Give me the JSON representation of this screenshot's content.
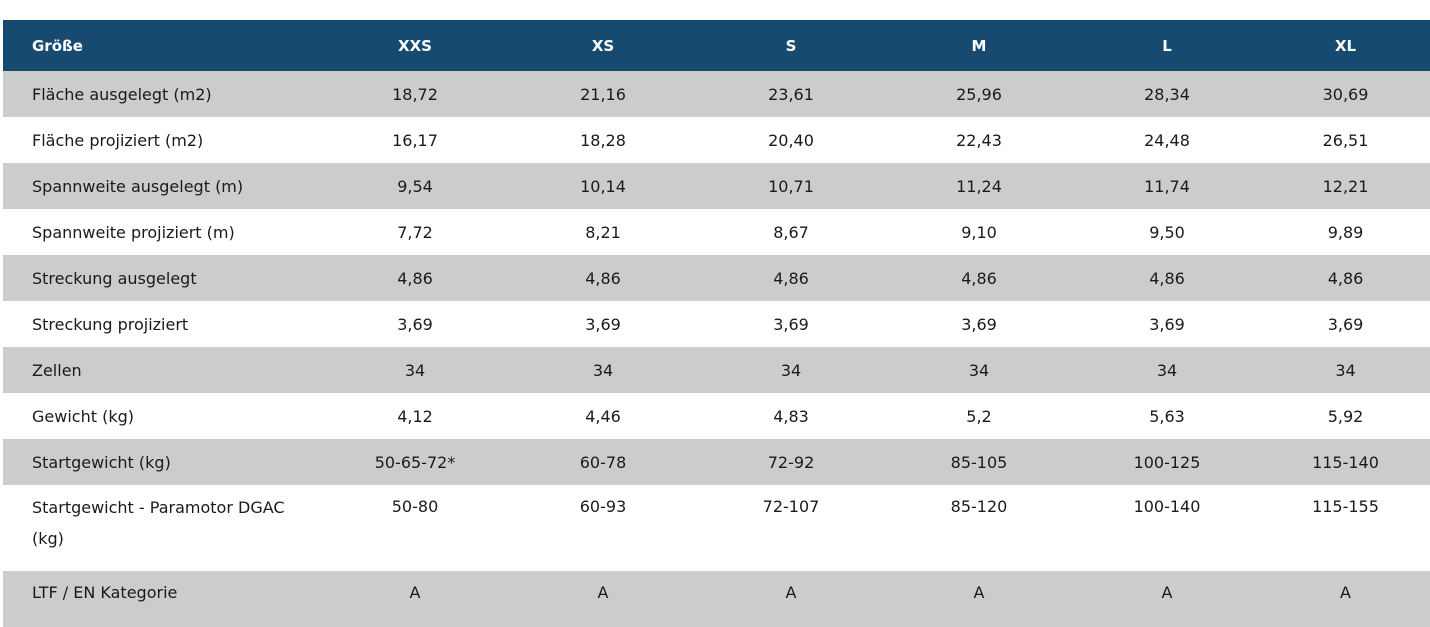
{
  "table": {
    "header": {
      "label": "Größe",
      "sizes": [
        "XXS",
        "XS",
        "S",
        "M",
        "L",
        "XL"
      ]
    },
    "rows": [
      {
        "label": "Fläche ausgelegt (m2)",
        "values": [
          "18,72",
          "21,16",
          "23,61",
          "25,96",
          "28,34",
          "30,69"
        ]
      },
      {
        "label": "Fläche projiziert (m2)",
        "values": [
          "16,17",
          "18,28",
          "20,40",
          "22,43",
          "24,48",
          "26,51"
        ]
      },
      {
        "label": "Spannweite ausgelegt (m)",
        "values": [
          "9,54",
          "10,14",
          "10,71",
          "11,24",
          "11,74",
          "12,21"
        ]
      },
      {
        "label": "Spannweite projiziert (m)",
        "values": [
          "7,72",
          "8,21",
          "8,67",
          "9,10",
          "9,50",
          "9,89"
        ]
      },
      {
        "label": "Streckung ausgelegt",
        "values": [
          "4,86",
          "4,86",
          "4,86",
          "4,86",
          "4,86",
          "4,86"
        ]
      },
      {
        "label": "Streckung projiziert",
        "values": [
          "3,69",
          "3,69",
          "3,69",
          "3,69",
          "3,69",
          "3,69"
        ]
      },
      {
        "label": "Zellen",
        "values": [
          "34",
          "34",
          "34",
          "34",
          "34",
          "34"
        ]
      },
      {
        "label": "Gewicht (kg)",
        "values": [
          "4,12",
          "4,46",
          "4,83",
          "5,2",
          "5,63",
          "5,92"
        ]
      },
      {
        "label": "Startgewicht (kg)",
        "values": [
          "50-65-72*",
          "60-78",
          "72-92",
          "85-105",
          "100-125",
          "115-140"
        ]
      },
      {
        "label": "Startgewicht - Paramotor DGAC (kg)",
        "values": [
          "50-80",
          "60-93",
          "72-107",
          "85-120",
          "100-140",
          "115-155"
        ]
      },
      {
        "label": "LTF / EN Kategorie",
        "values": [
          "A",
          "A",
          "A",
          "A",
          "A",
          "A"
        ]
      }
    ]
  }
}
